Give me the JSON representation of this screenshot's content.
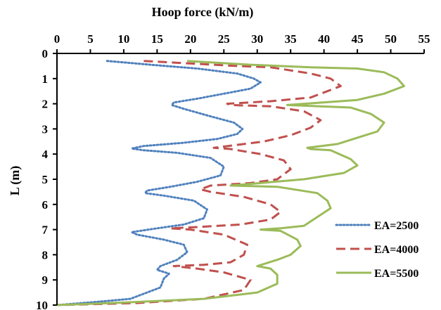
{
  "chart_data": {
    "type": "line",
    "title": "",
    "xlabel": "Hoop force (kN/m)",
    "ylabel": "L (m)",
    "x_axis_position": "top",
    "y_axis_inverted": true,
    "xlim": [
      0,
      55
    ],
    "ylim": [
      0,
      10
    ],
    "x_ticks": [
      "0",
      "5",
      "10",
      "15",
      "20",
      "25",
      "30",
      "35",
      "40",
      "45",
      "50",
      "55"
    ],
    "y_ticks": [
      "0",
      "1",
      "2",
      "3",
      "4",
      "5",
      "6",
      "7",
      "8",
      "9",
      "10"
    ],
    "grid": false,
    "legend_position": "bottom-right",
    "series": [
      {
        "name": "EA=2500",
        "color": "#4f81bd",
        "style": "dotted",
        "points": [
          [
            7.5,
            0.3
          ],
          [
            14,
            0.45
          ],
          [
            21,
            0.6
          ],
          [
            27,
            0.8
          ],
          [
            29.5,
            1.0
          ],
          [
            30.5,
            1.15
          ],
          [
            29,
            1.4
          ],
          [
            25,
            1.6
          ],
          [
            21,
            1.8
          ],
          [
            17.5,
            1.95
          ],
          [
            17.2,
            2.05
          ],
          [
            19,
            2.2
          ],
          [
            23,
            2.5
          ],
          [
            26.5,
            2.75
          ],
          [
            27.8,
            3.0
          ],
          [
            27,
            3.2
          ],
          [
            24,
            3.4
          ],
          [
            19,
            3.55
          ],
          [
            13,
            3.68
          ],
          [
            11.2,
            3.78
          ],
          [
            13,
            3.85
          ],
          [
            18,
            3.95
          ],
          [
            23,
            4.15
          ],
          [
            25,
            4.5
          ],
          [
            24.5,
            4.85
          ],
          [
            21,
            5.1
          ],
          [
            17,
            5.3
          ],
          [
            13.5,
            5.45
          ],
          [
            13.2,
            5.55
          ],
          [
            16,
            5.65
          ],
          [
            20.5,
            5.85
          ],
          [
            22.5,
            6.2
          ],
          [
            22,
            6.55
          ],
          [
            19,
            6.8
          ],
          [
            15,
            6.95
          ],
          [
            11.2,
            7.1
          ],
          [
            12,
            7.2
          ],
          [
            16,
            7.4
          ],
          [
            19,
            7.6
          ],
          [
            19.5,
            7.9
          ],
          [
            18,
            8.2
          ],
          [
            15.5,
            8.45
          ],
          [
            15,
            8.6
          ],
          [
            16.8,
            8.75
          ],
          [
            16,
            8.95
          ],
          [
            15.5,
            9.3
          ],
          [
            11,
            9.75
          ],
          [
            7,
            9.85
          ],
          [
            0,
            10.0
          ]
        ]
      },
      {
        "name": "EA=4000",
        "color": "#c0504d",
        "style": "dashed",
        "points": [
          [
            13,
            0.3
          ],
          [
            20,
            0.4
          ],
          [
            27,
            0.5
          ],
          [
            32,
            0.55
          ],
          [
            38,
            0.8
          ],
          [
            41,
            1.0
          ],
          [
            42.5,
            1.3
          ],
          [
            38,
            1.75
          ],
          [
            32,
            1.9
          ],
          [
            25.5,
            2.0
          ],
          [
            26,
            2.05
          ],
          [
            32,
            2.1
          ],
          [
            37,
            2.3
          ],
          [
            39.5,
            2.65
          ],
          [
            38,
            2.95
          ],
          [
            35,
            3.25
          ],
          [
            31,
            3.5
          ],
          [
            25,
            3.7
          ],
          [
            23.5,
            3.75
          ],
          [
            26,
            3.8
          ],
          [
            30.5,
            4.0
          ],
          [
            34,
            4.25
          ],
          [
            35,
            4.6
          ],
          [
            33,
            5.0
          ],
          [
            29,
            5.15
          ],
          [
            23,
            5.25
          ],
          [
            21.5,
            5.4
          ],
          [
            23,
            5.5
          ],
          [
            28,
            5.7
          ],
          [
            32,
            6.0
          ],
          [
            33.5,
            6.3
          ],
          [
            32,
            6.6
          ],
          [
            27.5,
            6.8
          ],
          [
            21,
            6.9
          ],
          [
            17,
            6.95
          ],
          [
            20,
            7.0
          ],
          [
            25,
            7.2
          ],
          [
            28.5,
            7.6
          ],
          [
            28,
            8.0
          ],
          [
            26,
            8.3
          ],
          [
            22,
            8.4
          ],
          [
            17.5,
            8.45
          ],
          [
            21,
            8.55
          ],
          [
            25,
            8.7
          ],
          [
            29,
            9.0
          ],
          [
            28,
            9.4
          ],
          [
            22,
            9.75
          ],
          [
            12,
            9.92
          ],
          [
            0,
            10.0
          ]
        ]
      },
      {
        "name": "EA=5500",
        "color": "#9bbb59",
        "style": "solid",
        "points": [
          [
            19.5,
            0.3
          ],
          [
            29,
            0.45
          ],
          [
            38,
            0.55
          ],
          [
            45,
            0.6
          ],
          [
            49,
            0.75
          ],
          [
            51,
            1.0
          ],
          [
            52,
            1.3
          ],
          [
            49,
            1.6
          ],
          [
            45,
            1.85
          ],
          [
            34.5,
            2.05
          ],
          [
            44,
            2.15
          ],
          [
            47,
            2.4
          ],
          [
            49,
            2.75
          ],
          [
            48,
            3.1
          ],
          [
            45,
            3.35
          ],
          [
            42,
            3.6
          ],
          [
            37.5,
            3.75
          ],
          [
            38,
            3.8
          ],
          [
            41,
            3.85
          ],
          [
            44,
            4.2
          ],
          [
            45,
            4.45
          ],
          [
            43,
            4.75
          ],
          [
            37,
            5.0
          ],
          [
            26,
            5.25
          ],
          [
            33,
            5.3
          ],
          [
            39,
            5.55
          ],
          [
            40.5,
            5.85
          ],
          [
            41,
            6.15
          ],
          [
            39,
            6.5
          ],
          [
            37,
            6.85
          ],
          [
            33.5,
            6.95
          ],
          [
            30.5,
            7.0
          ],
          [
            33.5,
            7.05
          ],
          [
            36,
            7.4
          ],
          [
            36.5,
            7.65
          ],
          [
            35,
            8.0
          ],
          [
            33,
            8.2
          ],
          [
            30,
            8.45
          ],
          [
            32,
            8.55
          ],
          [
            33,
            8.8
          ],
          [
            33,
            9.15
          ],
          [
            30,
            9.5
          ],
          [
            22,
            9.75
          ],
          [
            10,
            9.9
          ],
          [
            0,
            10.0
          ]
        ]
      }
    ]
  }
}
